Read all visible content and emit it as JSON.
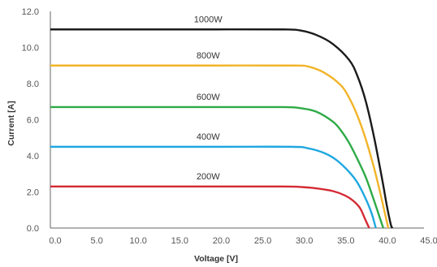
{
  "chart_data": {
    "type": "line",
    "xlabel": "Voltage [V]",
    "ylabel": "Current [A]",
    "xlim": [
      0,
      45
    ],
    "ylim": [
      0,
      12
    ],
    "xticks": [
      "0.0",
      "5.0",
      "10.0",
      "15.0",
      "20.0",
      "25.0",
      "30.0",
      "35.0",
      "40.0",
      "45.0"
    ],
    "yticks": [
      "0.0",
      "2.0",
      "4.0",
      "6.0",
      "8.0",
      "10.0",
      "12.0"
    ],
    "grid": false,
    "series": [
      {
        "name": "1000W",
        "color": "#1a1a1a",
        "points": [
          [
            0,
            11.0
          ],
          [
            10,
            11.0
          ],
          [
            20,
            11.0
          ],
          [
            28,
            11.0
          ],
          [
            30,
            10.95
          ],
          [
            32,
            10.7
          ],
          [
            34,
            10.2
          ],
          [
            36,
            9.3
          ],
          [
            37,
            8.4
          ],
          [
            38,
            7.0
          ],
          [
            39,
            5.0
          ],
          [
            40,
            2.6
          ],
          [
            40.5,
            1.3
          ],
          [
            41.0,
            0.2
          ],
          [
            41.2,
            0.0
          ]
        ]
      },
      {
        "name": "800W",
        "color": "#f2b428",
        "points": [
          [
            0,
            9.0
          ],
          [
            10,
            9.0
          ],
          [
            20,
            9.0
          ],
          [
            29,
            9.0
          ],
          [
            31,
            8.95
          ],
          [
            33,
            8.6
          ],
          [
            35,
            7.9
          ],
          [
            36,
            7.2
          ],
          [
            37,
            6.2
          ],
          [
            38,
            4.9
          ],
          [
            39,
            3.3
          ],
          [
            39.7,
            2.0
          ],
          [
            40.3,
            0.8
          ],
          [
            40.7,
            0.0
          ]
        ]
      },
      {
        "name": "600W",
        "color": "#2eaa46",
        "points": [
          [
            0,
            6.7
          ],
          [
            10,
            6.7
          ],
          [
            20,
            6.7
          ],
          [
            28,
            6.7
          ],
          [
            30,
            6.65
          ],
          [
            32,
            6.45
          ],
          [
            34,
            5.9
          ],
          [
            35,
            5.4
          ],
          [
            36,
            4.7
          ],
          [
            37,
            3.8
          ],
          [
            38,
            2.8
          ],
          [
            39,
            1.5
          ],
          [
            39.8,
            0.4
          ],
          [
            40.1,
            0.0
          ]
        ]
      },
      {
        "name": "400W",
        "color": "#1fa8e0",
        "points": [
          [
            0,
            4.5
          ],
          [
            10,
            4.5
          ],
          [
            20,
            4.5
          ],
          [
            29,
            4.5
          ],
          [
            31,
            4.42
          ],
          [
            33,
            4.15
          ],
          [
            34.5,
            3.75
          ],
          [
            36,
            3.1
          ],
          [
            37,
            2.5
          ],
          [
            38,
            1.6
          ],
          [
            38.7,
            0.8
          ],
          [
            39.2,
            0.0
          ]
        ]
      },
      {
        "name": "200W",
        "color": "#d42a35",
        "points": [
          [
            0,
            2.3
          ],
          [
            10,
            2.3
          ],
          [
            20,
            2.3
          ],
          [
            28,
            2.3
          ],
          [
            30,
            2.28
          ],
          [
            32,
            2.2
          ],
          [
            34,
            2.05
          ],
          [
            35.5,
            1.8
          ],
          [
            36.5,
            1.5
          ],
          [
            37.3,
            1.1
          ],
          [
            37.9,
            0.5
          ],
          [
            38.4,
            0.0
          ]
        ]
      }
    ]
  }
}
